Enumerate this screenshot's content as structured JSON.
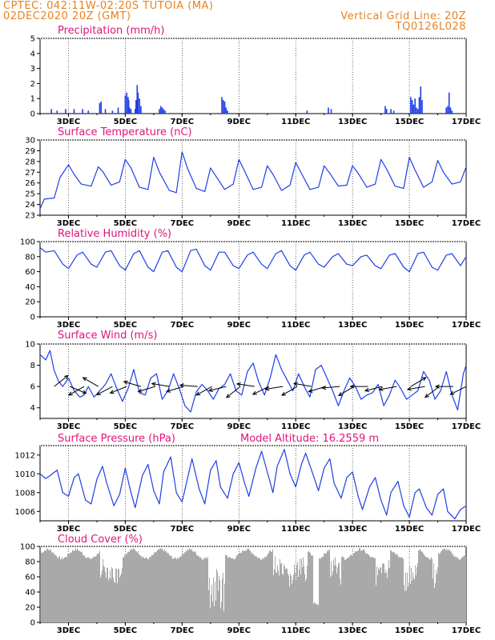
{
  "header": {
    "line1": "CPTEC:   042:11W-02:20S   TUTOIA (MA)",
    "line2": "02DEC2020 20Z (GMT)",
    "grid_note": "Vertical Grid Line: 20Z",
    "model_code": "TQ0126L028"
  },
  "colors": {
    "header": "#e8821e",
    "title": "#e0147c",
    "series": "#1f3fe6",
    "cloud": "#a9a9a9"
  },
  "x_tick_labels": [
    "3DEC",
    "5DEC",
    "7DEC",
    "9DEC",
    "11DEC",
    "13DEC",
    "15DEC",
    "17DEC"
  ],
  "chart_data": [
    {
      "type": "bar",
      "title": "Precipitation (mm/h)",
      "ylim": [
        0,
        5
      ],
      "yticks": [
        0,
        1,
        2,
        3,
        4,
        5
      ],
      "x_units": "days since 02DEC2020 20Z",
      "x": [
        0.4,
        0.6,
        0.9,
        1.2,
        1.5,
        1.7,
        2.1,
        2.15,
        2.3,
        2.55,
        2.75,
        3.0,
        3.05,
        3.1,
        3.12,
        3.15,
        3.2,
        3.35,
        3.38,
        3.42,
        3.45,
        3.5,
        3.55,
        4.2,
        4.25,
        4.3,
        4.35,
        4.4,
        6.4,
        6.45,
        6.5,
        6.55,
        6.6,
        9.4,
        10.15,
        10.25,
        12.15,
        12.2,
        12.35,
        12.45,
        13.05,
        13.1,
        13.15,
        13.2,
        13.25,
        13.3,
        13.35,
        13.4,
        13.45,
        14.3,
        14.35,
        14.4,
        14.45,
        14.5
      ],
      "values": [
        0.3,
        0.2,
        0.3,
        0.3,
        0.3,
        0.2,
        0.7,
        0.8,
        0.3,
        0.2,
        0.4,
        1.2,
        1.4,
        1.1,
        0.9,
        0.4,
        0.3,
        0.3,
        0.9,
        1.9,
        1.4,
        1.0,
        0.5,
        0.3,
        0.5,
        0.4,
        0.3,
        0.2,
        1.1,
        0.9,
        0.8,
        0.4,
        0.2,
        0.2,
        0.4,
        0.3,
        0.5,
        0.3,
        0.3,
        0.2,
        1.1,
        0.9,
        0.6,
        1.0,
        0.4,
        0.3,
        1.1,
        1.8,
        0.9,
        0.4,
        0.5,
        1.4,
        0.4,
        0.2
      ]
    },
    {
      "type": "line",
      "title": "Surface Temperature (nC)",
      "ylim": [
        23,
        30
      ],
      "yticks": [
        23,
        24,
        25,
        26,
        27,
        28,
        29,
        30
      ],
      "x": [
        0,
        0.15,
        0.5,
        0.7,
        1.0,
        1.2,
        1.45,
        1.8,
        2.05,
        2.2,
        2.5,
        2.8,
        3.0,
        3.2,
        3.5,
        3.8,
        4.0,
        4.2,
        4.55,
        4.8,
        5.0,
        5.2,
        5.5,
        5.8,
        6.0,
        6.2,
        6.5,
        6.8,
        7.0,
        7.2,
        7.5,
        7.8,
        8.0,
        8.2,
        8.5,
        8.8,
        9.0,
        9.2,
        9.5,
        9.8,
        10.0,
        10.2,
        10.5,
        10.8,
        11.0,
        11.2,
        11.5,
        11.8,
        12.0,
        12.2,
        12.5,
        12.8,
        13.0,
        13.2,
        13.5,
        13.8,
        14.0,
        14.2,
        14.5,
        14.8,
        15.0
      ],
      "values": [
        23.6,
        24.5,
        24.6,
        26.5,
        27.7,
        26.8,
        25.9,
        25.7,
        27.5,
        27.1,
        25.8,
        26.1,
        28.2,
        27.4,
        25.6,
        25.4,
        28.4,
        27.0,
        25.3,
        25.1,
        28.9,
        27.3,
        25.5,
        25.2,
        27.4,
        26.6,
        25.4,
        25.9,
        28.2,
        27.1,
        25.4,
        25.6,
        27.6,
        26.8,
        25.3,
        25.8,
        27.9,
        26.9,
        25.4,
        25.6,
        27.6,
        26.9,
        25.7,
        25.8,
        27.6,
        26.9,
        25.6,
        25.9,
        28.2,
        27.3,
        25.7,
        25.5,
        28.4,
        27.2,
        25.6,
        26.1,
        28.1,
        27.0,
        25.9,
        26.1,
        27.5
      ]
    },
    {
      "type": "line",
      "title": "Relative Humidity (%)",
      "ylim": [
        0,
        100
      ],
      "yticks": [
        0,
        20,
        40,
        60,
        80,
        100
      ],
      "x": [
        0,
        0.2,
        0.5,
        0.8,
        1.0,
        1.3,
        1.5,
        1.8,
        2.0,
        2.3,
        2.5,
        2.8,
        3.0,
        3.3,
        3.5,
        3.8,
        4.0,
        4.3,
        4.5,
        4.8,
        5.0,
        5.3,
        5.5,
        5.8,
        6.0,
        6.3,
        6.5,
        6.8,
        7.0,
        7.3,
        7.5,
        7.8,
        8.0,
        8.3,
        8.5,
        8.8,
        9.0,
        9.3,
        9.5,
        9.8,
        10.0,
        10.3,
        10.5,
        10.8,
        11.0,
        11.3,
        11.5,
        11.8,
        12.0,
        12.3,
        12.5,
        12.8,
        13.0,
        13.3,
        13.5,
        13.8,
        14.0,
        14.3,
        14.5,
        14.8,
        15.0
      ],
      "values": [
        92,
        86,
        88,
        70,
        64,
        82,
        86,
        70,
        66,
        86,
        88,
        68,
        62,
        84,
        88,
        66,
        60,
        86,
        88,
        66,
        60,
        88,
        90,
        68,
        62,
        86,
        86,
        68,
        64,
        82,
        86,
        70,
        64,
        84,
        88,
        68,
        62,
        82,
        86,
        70,
        66,
        80,
        84,
        70,
        68,
        80,
        82,
        68,
        64,
        82,
        84,
        66,
        60,
        84,
        86,
        66,
        62,
        82,
        84,
        68,
        80
      ]
    },
    {
      "type": "line",
      "title": "Surface Wind (m/s)",
      "ylim": [
        3,
        10
      ],
      "yticks": [
        4,
        6,
        8,
        10
      ],
      "x": [
        0,
        0.2,
        0.35,
        0.5,
        0.65,
        0.8,
        1.0,
        1.2,
        1.4,
        1.55,
        1.7,
        1.9,
        2.1,
        2.3,
        2.5,
        2.7,
        2.9,
        3.1,
        3.3,
        3.5,
        3.7,
        3.9,
        4.1,
        4.3,
        4.5,
        4.7,
        4.9,
        5.1,
        5.3,
        5.5,
        5.7,
        5.9,
        6.1,
        6.3,
        6.5,
        6.7,
        6.9,
        7.1,
        7.3,
        7.5,
        7.7,
        7.9,
        8.1,
        8.3,
        8.5,
        8.7,
        8.9,
        9.1,
        9.3,
        9.5,
        9.7,
        9.9,
        10.1,
        10.3,
        10.5,
        10.7,
        10.9,
        11.1,
        11.3,
        11.5,
        11.7,
        11.9,
        12.1,
        12.3,
        12.5,
        12.7,
        12.9,
        13.1,
        13.3,
        13.5,
        13.7,
        13.9,
        14.1,
        14.3,
        14.5,
        14.7,
        14.9,
        15.0
      ],
      "values": [
        9.0,
        8.5,
        9.4,
        7.5,
        6.5,
        6.0,
        6.8,
        5.6,
        5.0,
        5.2,
        6.0,
        5.0,
        5.6,
        6.2,
        7.2,
        5.8,
        4.6,
        5.8,
        7.6,
        5.4,
        5.2,
        6.8,
        7.2,
        4.8,
        5.6,
        7.2,
        5.8,
        4.2,
        3.6,
        5.5,
        6.2,
        5.6,
        4.8,
        5.8,
        6.2,
        7.2,
        5.6,
        5.2,
        7.4,
        8.2,
        6.4,
        5.2,
        6.8,
        9.0,
        7.6,
        6.6,
        5.6,
        7.2,
        6.0,
        5.0,
        7.6,
        8.0,
        6.8,
        5.6,
        4.2,
        5.6,
        6.8,
        6.0,
        4.8,
        5.2,
        5.4,
        6.2,
        4.2,
        5.2,
        6.6,
        5.8,
        4.8,
        5.2,
        5.6,
        7.4,
        6.6,
        4.8,
        5.6,
        7.4,
        5.2,
        3.8,
        7.2,
        8.0
      ],
      "arrows": [
        {
          "x": 0.5,
          "u": 1.0,
          "v": 0.8
        },
        {
          "x": 1.05,
          "u": 1.2,
          "v": -0.5
        },
        {
          "x": 1.55,
          "u": -1.6,
          "v": -0.9
        },
        {
          "x": 2.05,
          "u": -1.2,
          "v": 0.7
        },
        {
          "x": 2.55,
          "u": -1.5,
          "v": -0.8
        },
        {
          "x": 3.05,
          "u": -1.0,
          "v": -0.4
        },
        {
          "x": 3.55,
          "u": -1.4,
          "v": 0.4
        },
        {
          "x": 4.05,
          "u": -1.0,
          "v": -0.3
        },
        {
          "x": 4.55,
          "u": -1.2,
          "v": 0.2
        },
        {
          "x": 5.05,
          "u": -1.0,
          "v": -0.3
        },
        {
          "x": 5.55,
          "u": -1.3,
          "v": 0.1
        },
        {
          "x": 6.05,
          "u": -0.9,
          "v": -0.5
        },
        {
          "x": 6.55,
          "u": -1.2,
          "v": -0.3
        },
        {
          "x": 7.05,
          "u": -1.0,
          "v": -0.8
        },
        {
          "x": 7.55,
          "u": -1.3,
          "v": 0.2
        },
        {
          "x": 8.05,
          "u": -1.0,
          "v": -0.5
        },
        {
          "x": 8.55,
          "u": -1.3,
          "v": -0.2
        },
        {
          "x": 9.05,
          "u": -1.2,
          "v": -0.7
        },
        {
          "x": 9.55,
          "u": -1.1,
          "v": 0.2
        },
        {
          "x": 10.05,
          "u": -1.3,
          "v": -0.4
        },
        {
          "x": 10.55,
          "u": -1.2,
          "v": -0.1
        },
        {
          "x": 11.05,
          "u": -1.0,
          "v": -0.6
        },
        {
          "x": 11.55,
          "u": -1.1,
          "v": 0.0
        },
        {
          "x": 12.05,
          "u": -1.2,
          "v": -0.3
        },
        {
          "x": 12.55,
          "u": -1.1,
          "v": -0.2
        },
        {
          "x": 13.05,
          "u": 1.0,
          "v": 0.6
        },
        {
          "x": 13.55,
          "u": -1.2,
          "v": -0.2
        },
        {
          "x": 14.05,
          "u": -0.9,
          "v": -0.7
        },
        {
          "x": 14.55,
          "u": -1.2,
          "v": 0.0
        },
        {
          "x": 15.0,
          "u": -0.8,
          "v": -0.4
        }
      ]
    },
    {
      "type": "line",
      "title": "Surface Pressure (hPa)",
      "annotation": "Model Altitude: 16.2559 m",
      "ylim": [
        1005,
        1013
      ],
      "yticks": [
        1006,
        1008,
        1010,
        1012
      ],
      "x": [
        0,
        0.2,
        0.35,
        0.6,
        0.8,
        1.0,
        1.2,
        1.35,
        1.6,
        1.8,
        2.0,
        2.2,
        2.35,
        2.6,
        2.8,
        3.0,
        3.2,
        3.35,
        3.6,
        3.8,
        4.0,
        4.2,
        4.35,
        4.6,
        4.8,
        5.0,
        5.2,
        5.35,
        5.6,
        5.8,
        6.0,
        6.2,
        6.35,
        6.6,
        6.8,
        7.0,
        7.2,
        7.35,
        7.6,
        7.8,
        8.0,
        8.2,
        8.35,
        8.6,
        8.8,
        9.0,
        9.2,
        9.35,
        9.6,
        9.8,
        10.0,
        10.2,
        10.35,
        10.6,
        10.8,
        11.0,
        11.2,
        11.35,
        11.6,
        11.8,
        12.0,
        12.2,
        12.35,
        12.6,
        12.8,
        13.0,
        13.2,
        13.35,
        13.6,
        13.8,
        14.0,
        14.2,
        14.35,
        14.6,
        14.8,
        15.0
      ],
      "values": [
        1010.0,
        1009.5,
        1009.8,
        1010.4,
        1008.0,
        1007.6,
        1009.6,
        1010.0,
        1007.2,
        1006.8,
        1009.4,
        1010.8,
        1009.0,
        1006.6,
        1007.8,
        1010.6,
        1008.0,
        1006.4,
        1009.8,
        1011.0,
        1008.2,
        1006.8,
        1010.2,
        1011.8,
        1008.0,
        1007.0,
        1009.6,
        1011.6,
        1008.4,
        1006.8,
        1010.4,
        1011.4,
        1008.6,
        1007.4,
        1010.0,
        1011.2,
        1009.0,
        1007.6,
        1010.6,
        1012.4,
        1010.2,
        1008.0,
        1010.8,
        1012.6,
        1010.0,
        1008.6,
        1011.0,
        1012.2,
        1010.0,
        1008.2,
        1010.6,
        1011.6,
        1009.0,
        1007.4,
        1009.6,
        1010.2,
        1007.6,
        1006.2,
        1008.6,
        1009.6,
        1007.2,
        1005.6,
        1008.0,
        1009.2,
        1006.6,
        1005.4,
        1008.0,
        1008.4,
        1006.4,
        1005.6,
        1007.8,
        1008.4,
        1006.0,
        1005.2,
        1006.2,
        1006.6
      ]
    },
    {
      "type": "bar",
      "title": "Cloud Cover (%)",
      "ylim": [
        0,
        100
      ],
      "yticks": [
        0,
        20,
        40,
        60,
        80,
        100
      ]
    }
  ]
}
